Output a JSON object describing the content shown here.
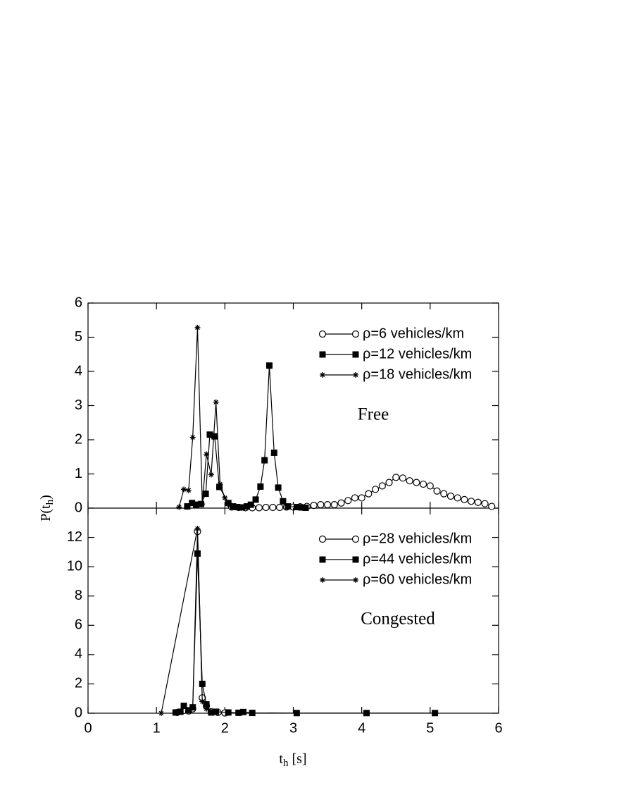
{
  "chart_data": [
    {
      "type": "line",
      "annotation": "Free",
      "ylabel": [
        "P(t",
        "h",
        ")"
      ],
      "xlim": [
        0,
        6
      ],
      "ylim": [
        0,
        6
      ],
      "yticks": [
        0,
        1,
        2,
        3,
        4,
        5,
        6
      ],
      "legend": "upper right",
      "series": [
        {
          "name": "ρ=6 vehicles/km",
          "marker": "circle-open",
          "color": "#000000",
          "x": [
            2.1,
            2.2,
            2.3,
            2.4,
            2.5,
            2.6,
            2.7,
            2.8,
            2.9,
            3.0,
            3.1,
            3.2,
            3.3,
            3.4,
            3.5,
            3.6,
            3.7,
            3.8,
            3.9,
            4.0,
            4.1,
            4.2,
            4.3,
            4.4,
            4.5,
            4.6,
            4.7,
            4.8,
            4.9,
            5.0,
            5.1,
            5.2,
            5.3,
            5.4,
            5.5,
            5.6,
            5.7,
            5.8,
            5.9
          ],
          "values": [
            0.03,
            0.02,
            0.01,
            0.01,
            0.01,
            0.02,
            0.02,
            0.02,
            0.03,
            0.03,
            0.04,
            0.05,
            0.08,
            0.1,
            0.1,
            0.1,
            0.15,
            0.22,
            0.3,
            0.3,
            0.42,
            0.55,
            0.65,
            0.75,
            0.9,
            0.88,
            0.8,
            0.75,
            0.7,
            0.65,
            0.5,
            0.42,
            0.35,
            0.3,
            0.25,
            0.2,
            0.17,
            0.13,
            0.05
          ]
        },
        {
          "name": "ρ=12 vehicles/km",
          "marker": "square",
          "color": "#000000",
          "x": [
            1.45,
            1.52,
            1.58,
            1.65,
            1.72,
            1.78,
            1.85,
            1.92,
            2.05,
            2.12,
            2.18,
            2.25,
            2.32,
            2.38,
            2.45,
            2.52,
            2.58,
            2.65,
            2.72,
            2.78,
            2.85,
            2.92,
            3.05,
            3.12,
            3.18
          ],
          "values": [
            0.05,
            0.15,
            0.1,
            0.12,
            0.42,
            2.15,
            2.1,
            0.62,
            0.15,
            0.05,
            0.03,
            0.02,
            0.05,
            0.1,
            0.25,
            0.63,
            1.4,
            4.17,
            1.62,
            0.6,
            0.2,
            0.05,
            0.03,
            0.02,
            0.01
          ]
        },
        {
          "name": "ρ=18 vehicles/km",
          "marker": "star",
          "color": "#000000",
          "x": [
            1.33,
            1.4,
            1.47,
            1.53,
            1.6,
            1.67,
            1.73,
            1.8,
            1.87,
            1.93,
            2.0,
            2.07,
            2.13,
            2.2
          ],
          "values": [
            0.03,
            0.55,
            0.52,
            2.07,
            5.28,
            0.12,
            1.58,
            0.98,
            3.1,
            0.7,
            0.3,
            0.1,
            0.03,
            0.01
          ]
        }
      ]
    },
    {
      "type": "line",
      "annotation": "Congested",
      "xlabel": [
        "t",
        "h",
        " [s]"
      ],
      "xlim": [
        0,
        6
      ],
      "xticks": [
        0,
        1,
        2,
        3,
        4,
        5,
        6
      ],
      "ylim": [
        0,
        14
      ],
      "yticks": [
        0,
        2,
        4,
        6,
        8,
        10,
        12
      ],
      "legend": "upper right",
      "series": [
        {
          "name": "ρ=28 vehicles/km",
          "marker": "circle-open",
          "color": "#000000",
          "x": [
            1.3,
            1.4,
            1.47,
            1.53,
            1.6,
            1.67,
            1.73,
            1.8,
            1.9,
            2.0
          ],
          "values": [
            0.05,
            0.2,
            0.15,
            0.3,
            12.4,
            1.05,
            0.5,
            0.1,
            0.05,
            0.02
          ]
        },
        {
          "name": "ρ=44 vehicles/km",
          "marker": "square",
          "color": "#000000",
          "x": [
            1.28,
            1.35,
            1.4,
            1.47,
            1.53,
            1.6,
            1.67,
            1.73,
            1.8,
            1.87,
            2.05,
            2.2,
            2.27,
            2.4,
            3.05,
            4.07,
            5.07
          ],
          "values": [
            0.05,
            0.1,
            0.5,
            0.2,
            0.4,
            10.9,
            2.0,
            0.6,
            0.05,
            0.1,
            0.05,
            0.03,
            0.08,
            0.02,
            0.01,
            0.01,
            0.01
          ]
        },
        {
          "name": "ρ=60 vehicles/km",
          "marker": "star",
          "color": "#000000",
          "x": [
            1.07,
            1.6,
            1.67,
            1.73,
            1.87
          ],
          "values": [
            0.0,
            12.6,
            0.8,
            0.3,
            0.05
          ]
        }
      ]
    }
  ]
}
